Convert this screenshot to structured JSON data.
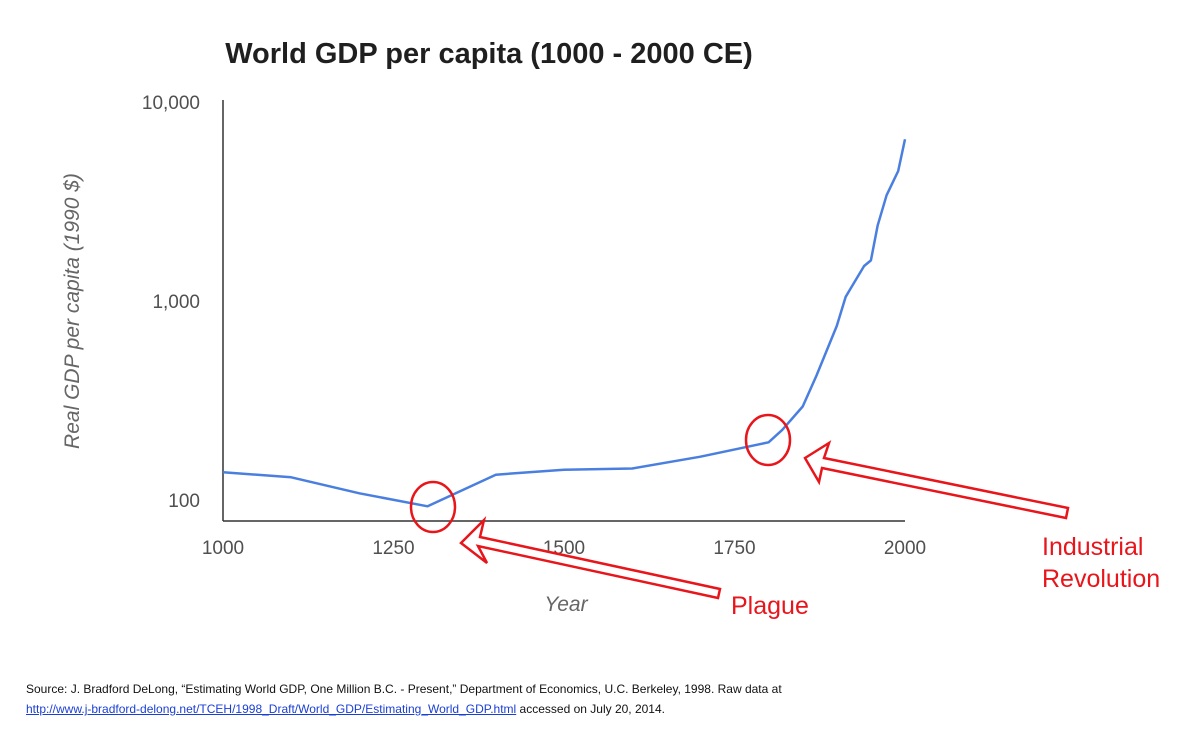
{
  "chart_data": {
    "type": "line",
    "title": "World GDP per capita (1000 - 2000 CE)",
    "xlabel": "Year",
    "ylabel": "Real GDP per capita (1990 $)",
    "xlim": [
      1000,
      2000
    ],
    "ylim": [
      80,
      10000
    ],
    "yscale": "log",
    "xticks": [
      1000,
      1250,
      1500,
      1750,
      2000
    ],
    "xtick_labels": [
      "1000",
      "1250",
      "1500",
      "1750",
      "2000"
    ],
    "yticks": [
      100,
      1000,
      10000
    ],
    "ytick_labels": [
      "100",
      "1,000",
      "10,000"
    ],
    "grid": false,
    "series": [
      {
        "color": "#4a7fe0",
        "x": [
          1000,
          1100,
          1200,
          1300,
          1400,
          1500,
          1600,
          1700,
          1800,
          1820,
          1850,
          1870,
          1900,
          1913,
          1920,
          1940,
          1950,
          1960,
          1973,
          1990,
          2000
        ],
        "y": [
          138,
          130,
          108,
          93,
          134,
          142,
          144,
          165,
          195,
          225,
          295,
          420,
          750,
          1050,
          1150,
          1500,
          1600,
          2400,
          3400,
          4500,
          6500
        ]
      }
    ],
    "annotations": [
      {
        "text": "Plague",
        "x": 1300,
        "y": 93
      },
      {
        "text": "Industrial Revolution",
        "x": 1800,
        "y": 195
      }
    ]
  },
  "annotation_labels": {
    "plague": "Plague",
    "industrial_line1": "Industrial",
    "industrial_line2": "Revolution"
  },
  "source": {
    "text": "Source: J. Bradford DeLong, “Estimating World GDP, One Million B.C. - Present,” Department of Economics, U.C. Berkeley, 1998. Raw data at",
    "link": "http://www.j-bradford-delong.net/TCEH/1998_Draft/World_GDP/Estimating_World_GDP.html",
    "suffix": " accessed on July 20, 2014."
  },
  "colors": {
    "line": "#4a7fe0",
    "annotation": "#e8151b",
    "axis": "#333333"
  }
}
